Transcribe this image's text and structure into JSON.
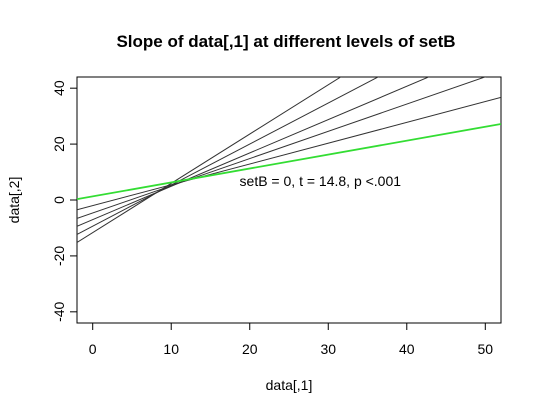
{
  "chart_data": {
    "type": "line",
    "title": "Slope of data[,1] at different levels of setB",
    "xlabel": "data[,1]",
    "ylabel": "data[,2]",
    "xlim": [
      -2,
      52
    ],
    "ylim": [
      -44,
      44
    ],
    "xticks": [
      0,
      10,
      20,
      30,
      40,
      50
    ],
    "yticks": [
      -40,
      -20,
      0,
      20,
      40
    ],
    "grid": false,
    "highlight_color": "#33dd33",
    "line_color": "#333333",
    "series": [
      {
        "x": [
          -2,
          52
        ],
        "y": [
          -15.2,
          80.0
        ],
        "color": "#333333",
        "highlight": false
      },
      {
        "x": [
          -2,
          52
        ],
        "y": [
          -12.3,
          67.0
        ],
        "color": "#333333",
        "highlight": false
      },
      {
        "x": [
          -2,
          52
        ],
        "y": [
          -9.4,
          55.0
        ],
        "color": "#333333",
        "highlight": false
      },
      {
        "x": [
          -2,
          52
        ],
        "y": [
          -6.6,
          46.0
        ],
        "color": "#333333",
        "highlight": false
      },
      {
        "x": [
          -2,
          52
        ],
        "y": [
          -3.5,
          36.7
        ],
        "color": "#333333",
        "highlight": false
      },
      {
        "x": [
          -2,
          52
        ],
        "y": [
          0.3,
          27.2
        ],
        "color": "#33dd33",
        "highlight": true
      }
    ],
    "annotation": {
      "text": "setB = 0, t = 14.8, p <.001",
      "x": 18.7,
      "y": 5
    }
  }
}
